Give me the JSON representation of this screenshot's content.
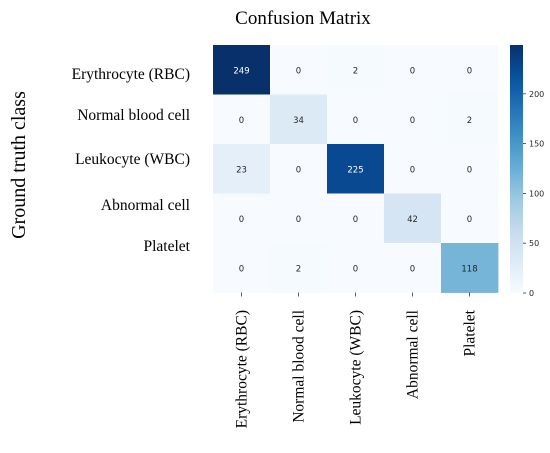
{
  "chart_data": {
    "type": "heatmap",
    "title": "Confusion Matrix",
    "ylabel": "Ground truth class",
    "xlabel": "",
    "rows": [
      "Erythrocyte (RBC)",
      "Normal blood cell",
      "Leukocyte (WBC)",
      "Abnormal cell",
      "Platelet"
    ],
    "columns": [
      "Erythrocyte (RBC)",
      "Normal blood cell",
      "Leukocyte (WBC)",
      "Abnormal cell",
      "Platelet"
    ],
    "values": [
      [
        249,
        0,
        2,
        0,
        0
      ],
      [
        0,
        34,
        0,
        0,
        2
      ],
      [
        23,
        0,
        225,
        0,
        0
      ],
      [
        0,
        0,
        0,
        42,
        0
      ],
      [
        0,
        2,
        0,
        0,
        118
      ]
    ],
    "color_range": [
      0,
      249
    ],
    "colorbar_ticks": [
      0,
      50,
      100,
      150,
      200
    ],
    "colormap": "Blues",
    "color_low": "#f7fbff",
    "color_high": "#08306b"
  }
}
